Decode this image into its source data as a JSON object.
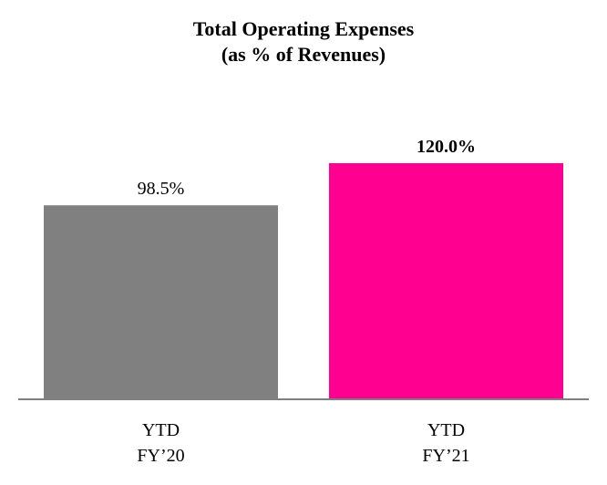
{
  "chart_data": {
    "type": "bar",
    "title": "Total Operating Expenses",
    "subtitle": "(as % of Revenues)",
    "categories": [
      [
        "YTD",
        "FY’20"
      ],
      [
        "YTD",
        "FY’21"
      ]
    ],
    "values": [
      98.5,
      120.0
    ],
    "value_labels": [
      "98.5%",
      "120.0%"
    ],
    "value_label_bold": [
      false,
      true
    ],
    "colors": [
      "#808080",
      "#FF0090"
    ],
    "axis_color": "#7f7f7f",
    "ylim": [
      0,
      120
    ],
    "grid": false,
    "legend": "none"
  }
}
